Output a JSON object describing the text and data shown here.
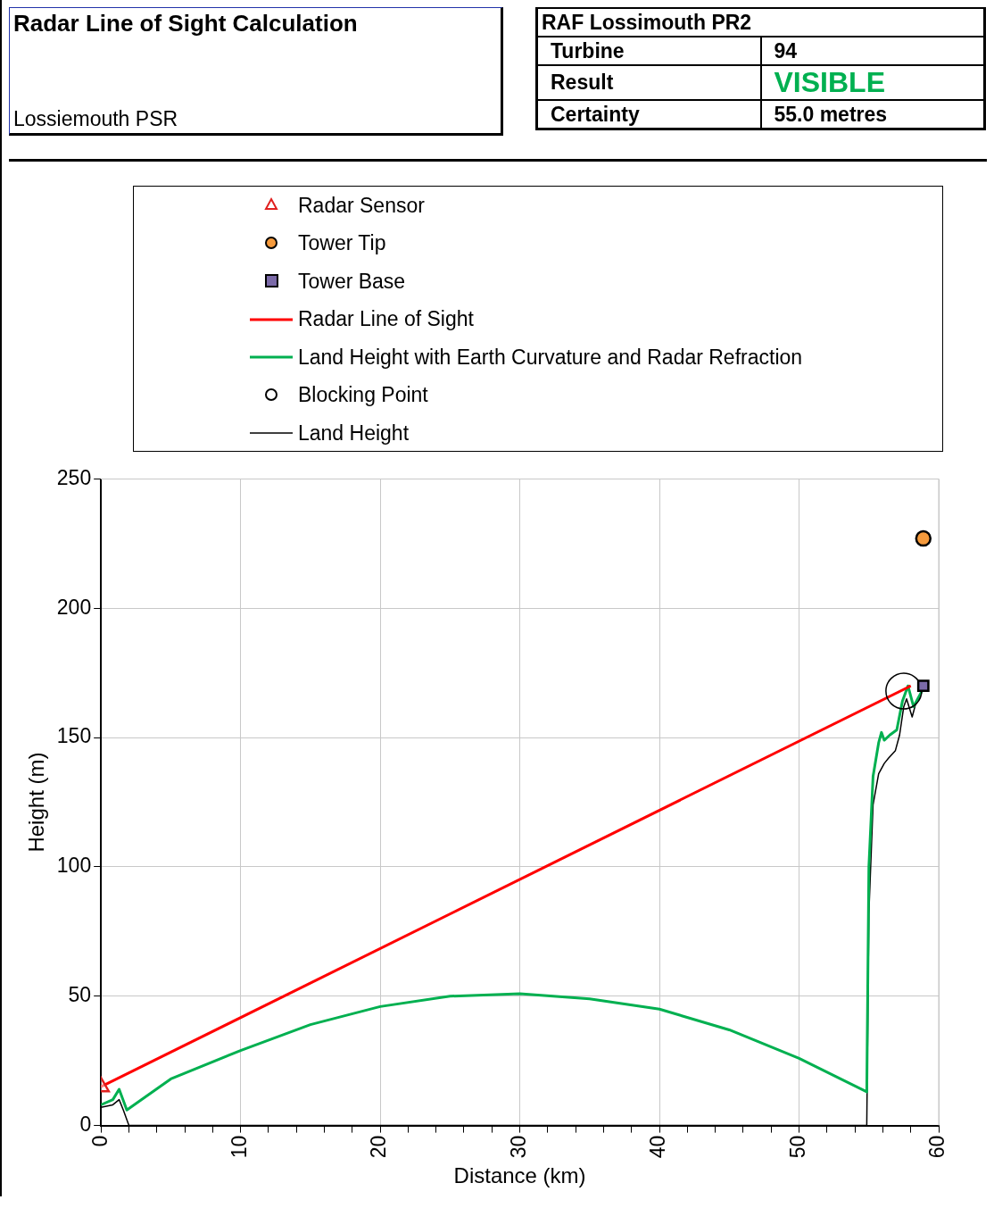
{
  "chart_data": {
    "type": "line",
    "title": "Radar Line of Sight Calculation",
    "subtitle": "Lossiemouth PSR",
    "annotations": [
      "RAF Lossimouth PR2",
      "Turbine",
      "94",
      "Result",
      "VISIBLE",
      "Certainty",
      "55.0     metres"
    ],
    "xlabel": "Distance (km)",
    "ylabel": "Height (m)",
    "xlim": [
      0,
      60
    ],
    "ylim": [
      0,
      250
    ],
    "xticks": [
      0,
      {
        "value": 2,
        "label": null
      },
      {
        "value": 4,
        "label": null
      },
      {
        "value": 6,
        "label": null
      },
      {
        "value": 8,
        "label": null
      },
      10,
      {
        "value": 12,
        "label": null
      },
      {
        "value": 14,
        "label": null
      },
      {
        "value": 16,
        "label": null
      },
      {
        "value": 18,
        "label": null
      },
      20,
      {
        "value": 22,
        "label": null
      },
      {
        "value": 24,
        "label": null
      },
      {
        "value": 26,
        "label": null
      },
      {
        "value": 28,
        "label": null
      },
      30,
      {
        "value": 32,
        "label": null
      },
      {
        "value": 34,
        "label": null
      },
      {
        "value": 36,
        "label": null
      },
      {
        "value": 38,
        "label": null
      },
      40,
      {
        "value": 42,
        "label": null
      },
      {
        "value": 44,
        "label": null
      },
      {
        "value": 46,
        "label": null
      },
      {
        "value": 48,
        "label": null
      },
      50,
      {
        "value": 52,
        "label": null
      },
      {
        "value": 54,
        "label": null
      },
      {
        "value": 56,
        "label": null
      },
      {
        "value": 58,
        "label": null
      },
      60
    ],
    "yticks": [
      0,
      50,
      100,
      150,
      200,
      250
    ],
    "grid": true,
    "legend": "top",
    "series": [
      {
        "name": "Radar Sensor",
        "type": "scatter",
        "marker": "triangle",
        "color": "#e0201f",
        "x": [
          0
        ],
        "values": [
          15
        ]
      },
      {
        "name": "Tower Tip",
        "type": "scatter",
        "marker": "circle",
        "color": "#f59a3c",
        "x": [
          58.9
        ],
        "values": [
          227
        ]
      },
      {
        "name": "Tower Base",
        "type": "scatter",
        "marker": "square",
        "color": "#7b6aa8",
        "x": [
          58.9
        ],
        "values": [
          170
        ]
      },
      {
        "name": "Radar Line of Sight",
        "marker": "none",
        "color": "#ff0000",
        "x": [
          0,
          58.0
        ],
        "values": [
          15,
          170
        ]
      },
      {
        "name": "Land Height with Earth Curvature and Radar Refraction",
        "marker": "none",
        "color": "#00b050",
        "x": [
          0,
          0.85,
          1.3,
          1.85,
          5,
          10,
          15,
          20,
          25,
          30,
          35,
          40,
          45,
          50,
          54.85,
          55.0,
          55.3,
          55.7,
          55.9,
          56.1,
          56.5,
          57.0,
          57.4,
          57.8,
          58.2,
          58.5,
          58.9
        ],
        "values": [
          8,
          10,
          14,
          6,
          18,
          29,
          39,
          46,
          50,
          51,
          49,
          45,
          37,
          26,
          13,
          100,
          135,
          148,
          152,
          149,
          151,
          153,
          164,
          170,
          162,
          165,
          169
        ]
      },
      {
        "name": "Blocking Point",
        "type": "scatter",
        "marker": "circle",
        "color": "#000000",
        "x": [
          57.5
        ],
        "values": [
          168
        ]
      },
      {
        "name": "Land Height",
        "marker": "none",
        "color": "#000000",
        "x": [
          0,
          0.85,
          1.3,
          1.6,
          2.0,
          10,
          20,
          30,
          40,
          50,
          54.85,
          55.0,
          55.3,
          55.7,
          56.1,
          56.4,
          56.9,
          57.2,
          57.5,
          57.7,
          58.1,
          58.4,
          58.7
        ],
        "values": [
          7,
          8,
          10,
          6,
          0,
          0,
          0,
          0,
          0,
          0,
          0,
          82,
          124,
          136,
          140,
          142,
          145,
          151,
          162,
          165,
          158,
          164,
          166
        ]
      }
    ]
  }
}
